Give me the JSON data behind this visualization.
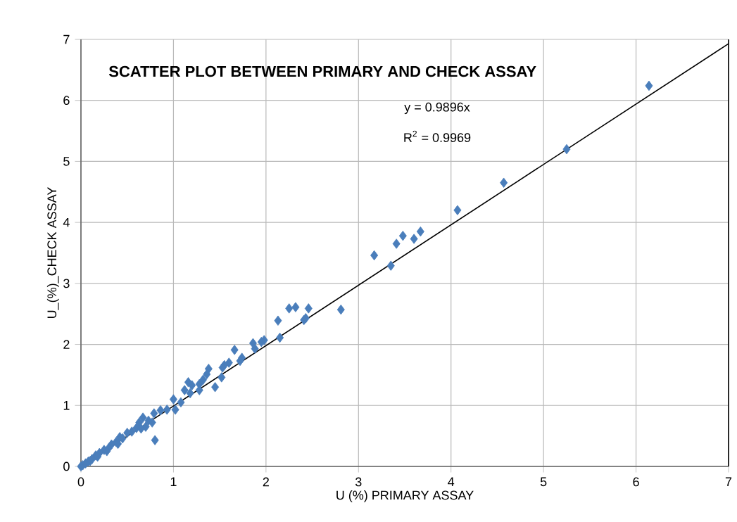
{
  "chart_data": {
    "type": "scatter",
    "title": "SCATTER PLOT BETWEEN PRIMARY AND CHECK ASSAY",
    "xlabel": "U  (%)  PRIMARY ASSAY",
    "ylabel": "U_(%)_CHECK  ASSAY",
    "annotations": [
      "y = 0.9896x",
      "R$^{2}$ = 0.9969"
    ],
    "xlim": [
      0,
      7
    ],
    "ylim": [
      0,
      7
    ],
    "xticks": [
      0,
      1,
      2,
      3,
      4,
      5,
      6,
      7
    ],
    "yticks": [
      0,
      1,
      2,
      3,
      4,
      5,
      6,
      7
    ],
    "grid": true,
    "marker": "diamond",
    "series": [
      {
        "color": "#4a7ebb",
        "x": [
          6.14,
          5.25,
          4.57,
          4.07,
          3.67,
          3.6,
          3.48,
          3.41,
          3.17,
          3.35,
          2.81,
          2.46,
          2.43,
          2.41,
          2.32,
          2.25,
          2.15,
          2.13,
          1.98,
          1.95,
          1.88,
          1.86,
          1.74,
          1.72,
          1.66,
          1.6,
          1.55,
          1.53,
          1.52,
          1.45,
          1.38,
          1.36,
          1.32,
          1.28,
          1.28,
          1.2,
          1.16,
          1.18,
          1.12,
          1.08,
          1.0,
          1.02,
          0.93,
          0.86,
          0.8,
          0.79,
          0.73,
          0.67,
          0.63,
          0.6,
          0.55,
          0.5,
          0.45,
          0.42,
          0.38,
          0.33,
          0.3,
          0.25,
          0.2,
          0.16,
          0.12,
          0.08,
          0.05,
          0.02,
          0,
          0.7,
          0.77,
          0.65,
          0.4,
          0.28,
          0.18,
          0.1
        ],
        "values": [
          6.24,
          5.2,
          4.65,
          4.2,
          3.85,
          3.73,
          3.78,
          3.65,
          3.46,
          3.29,
          2.57,
          2.59,
          2.43,
          2.4,
          2.61,
          2.59,
          2.11,
          2.39,
          2.07,
          2.04,
          1.93,
          2.02,
          1.78,
          1.73,
          1.91,
          1.7,
          1.66,
          1.62,
          1.46,
          1.3,
          1.6,
          1.51,
          1.42,
          1.35,
          1.25,
          1.33,
          1.38,
          1.2,
          1.25,
          1.05,
          1.1,
          0.93,
          0.93,
          0.92,
          0.43,
          0.87,
          0.75,
          0.8,
          0.72,
          0.63,
          0.57,
          0.55,
          0.46,
          0.48,
          0.4,
          0.36,
          0.3,
          0.27,
          0.22,
          0.18,
          0.12,
          0.08,
          0.05,
          0.02,
          0,
          0.65,
          0.72,
          0.62,
          0.37,
          0.25,
          0.16,
          0.09
        ]
      },
      {
        "type": "line",
        "color": "#000000",
        "marker": "none",
        "x": [
          0,
          7
        ],
        "values": [
          0,
          6.93
        ]
      }
    ]
  }
}
